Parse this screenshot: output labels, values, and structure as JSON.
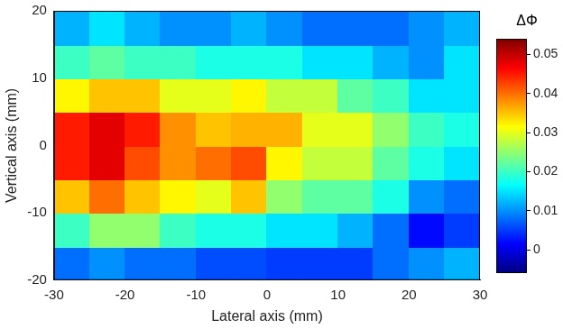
{
  "chart_data": {
    "type": "heatmap",
    "xlabel": "Lateral axis (mm)",
    "ylabel": "Vertical axis (mm)",
    "xlim": [
      -30,
      30
    ],
    "ylim": [
      -20,
      20
    ],
    "xticks": [
      -30,
      -20,
      -10,
      0,
      10,
      20,
      30
    ],
    "yticks": [
      -20,
      -10,
      0,
      10,
      20
    ],
    "grid": false,
    "x": [
      -27.5,
      -22.5,
      -17.5,
      -12.5,
      -7.5,
      -2.5,
      2.5,
      7.5,
      12.5,
      17.5,
      22.5,
      27.5
    ],
    "y": [
      -17.5,
      -12.5,
      -7.5,
      -2.5,
      2.5,
      7.5,
      12.5,
      17.5
    ],
    "z": [
      [
        0.008,
        0.01,
        0.008,
        0.008,
        0.006,
        0.006,
        0.005,
        0.005,
        0.005,
        0.008,
        0.01,
        0.012
      ],
      [
        0.02,
        0.025,
        0.025,
        0.02,
        0.018,
        0.018,
        0.015,
        0.015,
        0.012,
        0.008,
        0.002,
        0.005
      ],
      [
        0.035,
        0.04,
        0.035,
        0.032,
        0.03,
        0.035,
        0.025,
        0.022,
        0.022,
        0.018,
        0.01,
        0.008
      ],
      [
        0.045,
        0.048,
        0.042,
        0.038,
        0.04,
        0.042,
        0.032,
        0.028,
        0.028,
        0.022,
        0.018,
        0.015
      ],
      [
        0.045,
        0.048,
        0.045,
        0.038,
        0.035,
        0.036,
        0.036,
        0.03,
        0.03,
        0.025,
        0.02,
        0.018
      ],
      [
        0.032,
        0.035,
        0.035,
        0.03,
        0.03,
        0.032,
        0.028,
        0.028,
        0.022,
        0.02,
        0.015,
        0.015
      ],
      [
        0.02,
        0.022,
        0.02,
        0.02,
        0.018,
        0.018,
        0.018,
        0.015,
        0.015,
        0.012,
        0.01,
        0.015
      ],
      [
        0.012,
        0.015,
        0.012,
        0.01,
        0.01,
        0.012,
        0.01,
        0.008,
        0.008,
        0.008,
        0.01,
        0.012
      ]
    ],
    "colorbar": {
      "title": "ΔΦ",
      "range": [
        -0.006,
        0.054
      ],
      "ticks": [
        0,
        0.01,
        0.02,
        0.03,
        0.04,
        0.05
      ]
    }
  }
}
